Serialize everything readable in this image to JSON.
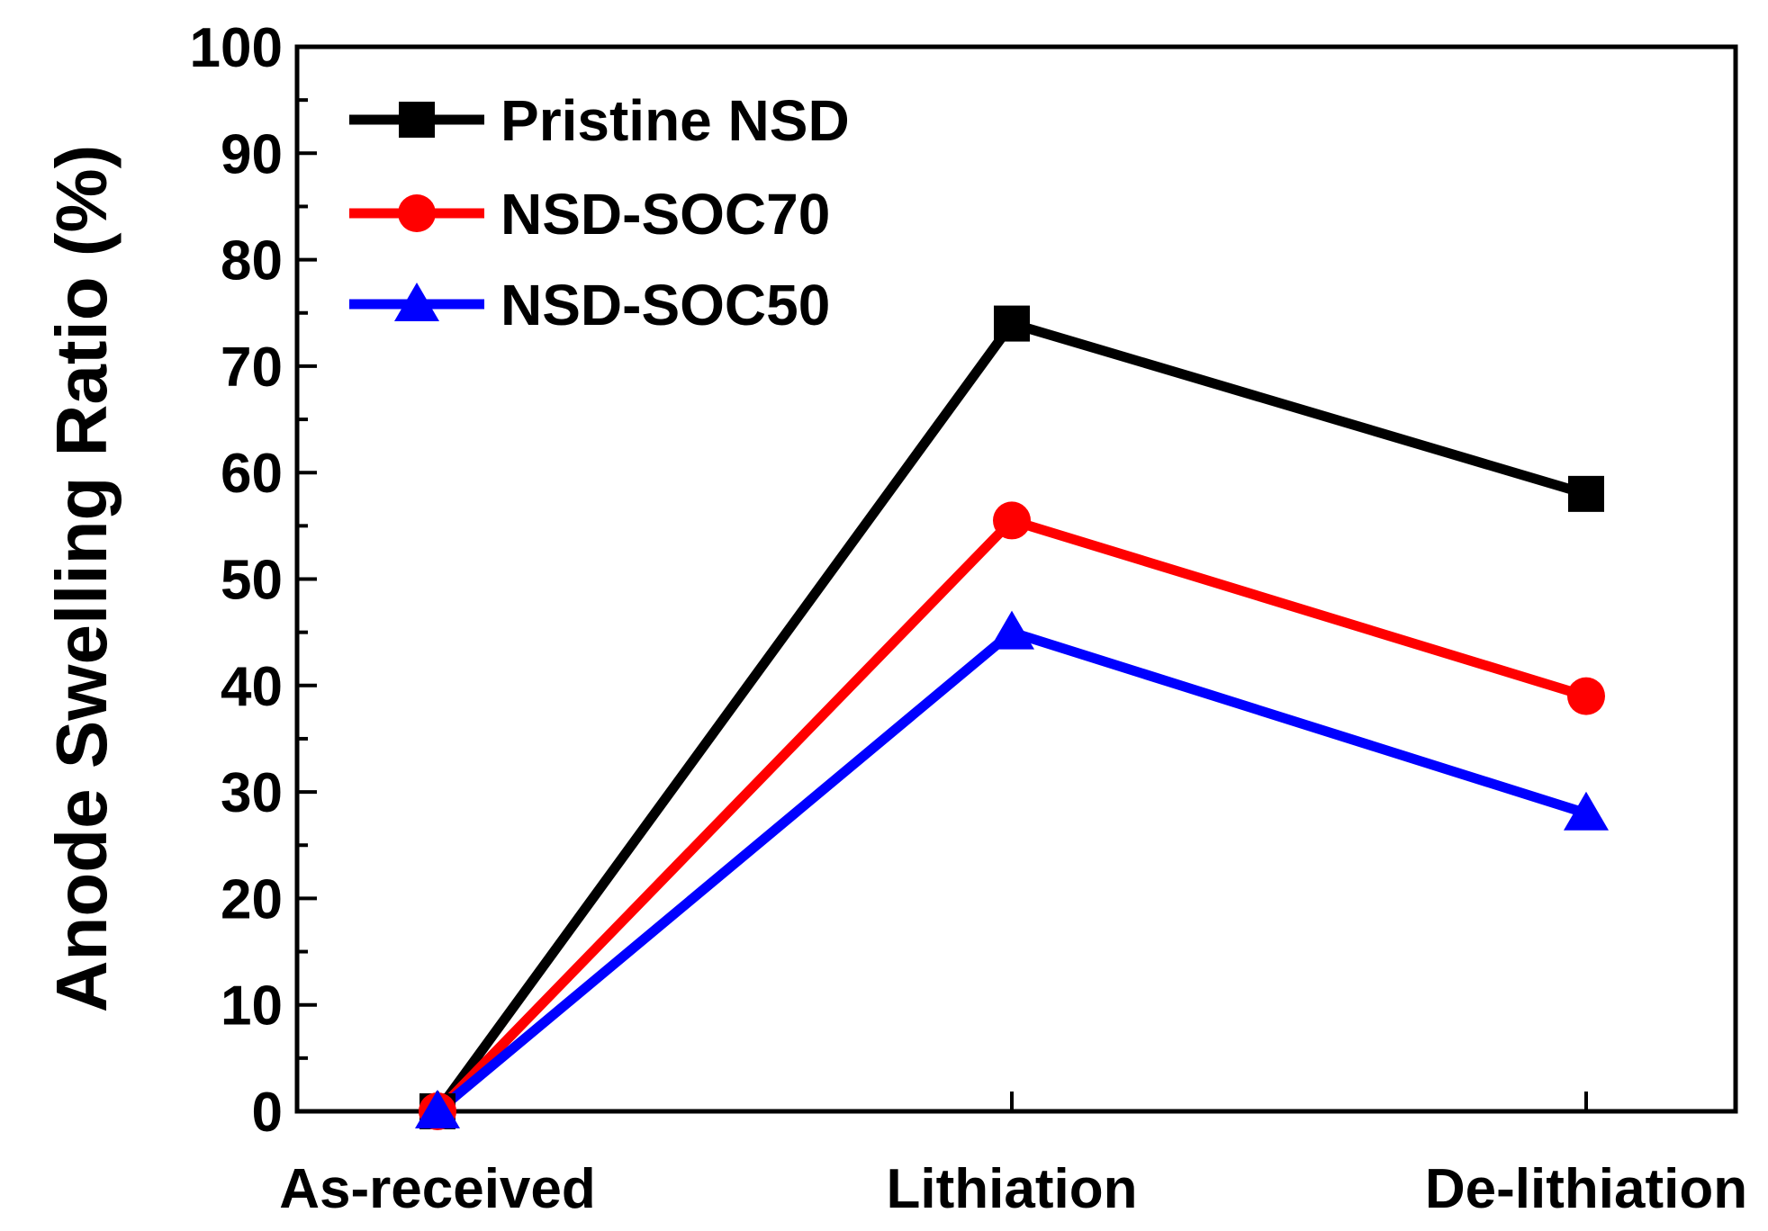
{
  "chart_data": {
    "type": "line",
    "title": "",
    "xlabel": "",
    "ylabel": "Anode Swelling Ratio (%)",
    "categories": [
      "As-received",
      "Lithiation",
      "De-lithiation"
    ],
    "ylim": [
      0,
      100
    ],
    "yticks": [
      "0",
      "10",
      "20",
      "30",
      "40",
      "50",
      "60",
      "70",
      "80",
      "90",
      "100"
    ],
    "grid": false,
    "legend_position": "top-left",
    "series": [
      {
        "name": "Pristine NSD",
        "color": "#000000",
        "marker": "square",
        "values": [
          0,
          74,
          58
        ]
      },
      {
        "name": "NSD-SOC70",
        "color": "#ff0000",
        "marker": "circle",
        "values": [
          0,
          55.5,
          39
        ]
      },
      {
        "name": "NSD-SOC50",
        "color": "#0000ff",
        "marker": "triangle",
        "values": [
          0,
          45,
          28
        ]
      }
    ]
  }
}
